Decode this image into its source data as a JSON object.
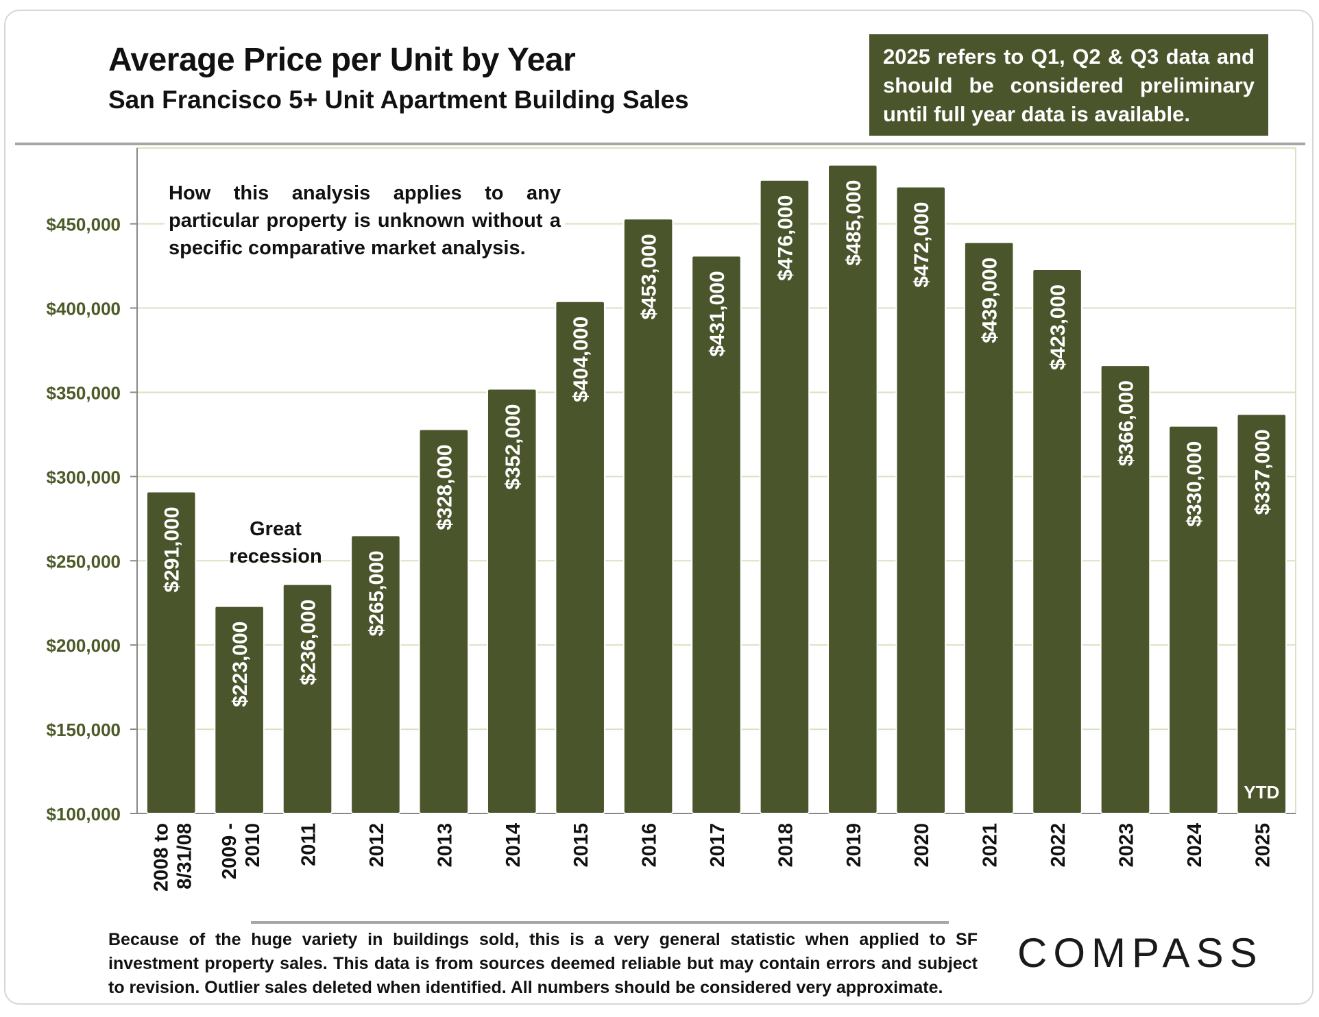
{
  "header": {
    "title": "Average Price per Unit by Year",
    "subtitle": "San Francisco 5+ Unit Apartment Building Sales"
  },
  "note_box": "2025 refers to Q1, Q2 & Q3 data and should be considered preliminary until full year data is available.",
  "annotation": "How this analysis applies to any particular property is unknown without a specific comparative market analysis.",
  "recession_label": "Great recession",
  "footer": "Because of the huge variety in buildings sold, this is a very general statistic when applied to SF investment property sales. This data is from sources deemed reliable but may contain errors and subject to revision. Outlier sales deleted when identified. All numbers should be considered very approximate.",
  "logo": "COMPASS",
  "colors": {
    "bar": "#4a552b",
    "axis_text": "#4b5a27",
    "grid": "#d9e2bf"
  },
  "chart_data": {
    "type": "bar",
    "title": "Average Price per Unit by Year",
    "subtitle": "San Francisco 5+ Unit Apartment Building Sales",
    "categories": [
      "2008 to 8/31/08",
      "2009 - 2010",
      "2011",
      "2012",
      "2013",
      "2014",
      "2015",
      "2016",
      "2017",
      "2018",
      "2019",
      "2020",
      "2021",
      "2022",
      "2023",
      "2024",
      "2025"
    ],
    "values": [
      291000,
      223000,
      236000,
      265000,
      328000,
      352000,
      404000,
      453000,
      431000,
      476000,
      485000,
      472000,
      439000,
      423000,
      366000,
      330000,
      337000
    ],
    "data_labels": [
      "$291,000",
      "$223,000",
      "$236,000",
      "$265,000",
      "$328,000",
      "$352,000",
      "$404,000",
      "$453,000",
      "$431,000",
      "$476,000",
      "$485,000",
      "$472,000",
      "$439,000",
      "$423,000",
      "$366,000",
      "$330,000",
      "$337,000"
    ],
    "category_lines": [
      [
        "2008 to",
        "8/31/08"
      ],
      [
        "2009 -",
        "2010"
      ],
      [
        "2011"
      ],
      [
        "2012"
      ],
      [
        "2013"
      ],
      [
        "2014"
      ],
      [
        "2015"
      ],
      [
        "2016"
      ],
      [
        "2017"
      ],
      [
        "2018"
      ],
      [
        "2019"
      ],
      [
        "2020"
      ],
      [
        "2021"
      ],
      [
        "2022"
      ],
      [
        "2023"
      ],
      [
        "2024"
      ],
      [
        "2025"
      ]
    ],
    "yticks": [
      100000,
      150000,
      200000,
      250000,
      300000,
      350000,
      400000,
      450000
    ],
    "ytick_labels": [
      "$100,000",
      "$150,000",
      "$200,000",
      "$250,000",
      "$300,000",
      "$350,000",
      "$400,000",
      "$450,000"
    ],
    "ylim": [
      100000,
      495000
    ],
    "grid": true,
    "xlabel": "",
    "ylabel": "",
    "bar_note": "YTD"
  }
}
